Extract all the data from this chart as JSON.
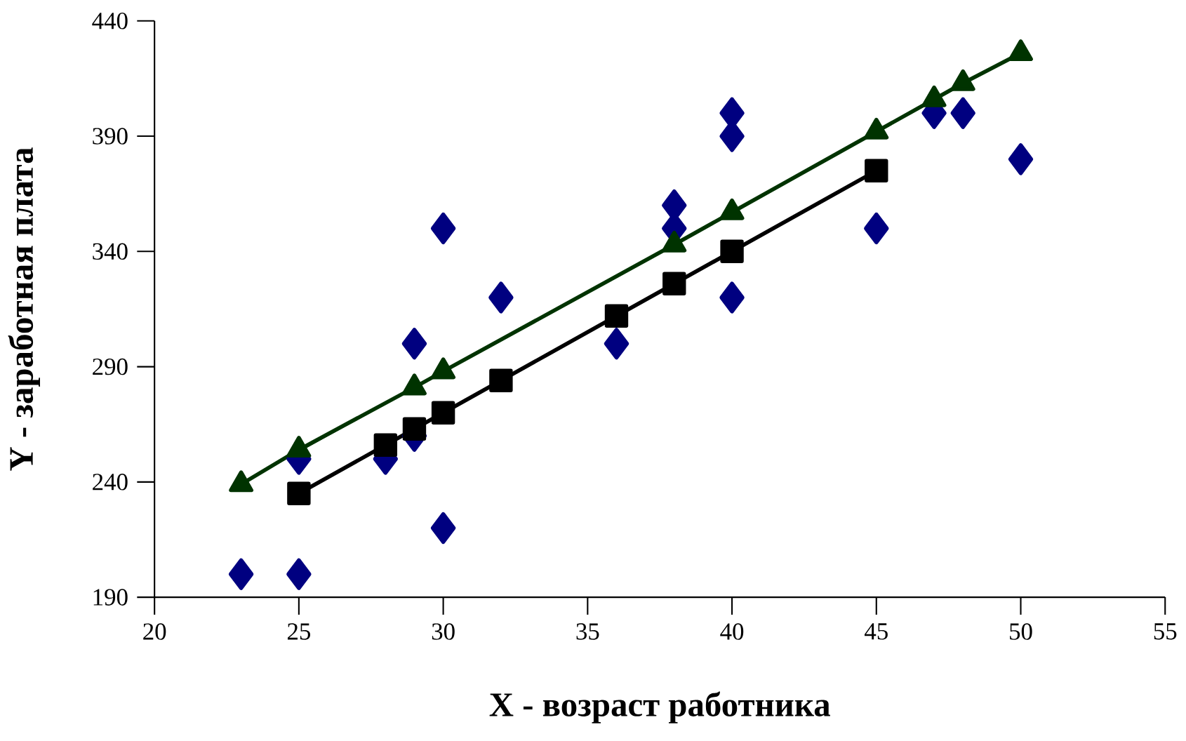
{
  "chart_data": {
    "type": "scatter",
    "xlabel": "X - возраст работника",
    "ylabel": "Y - заработная плата",
    "xlim": [
      20,
      55
    ],
    "xticks": [
      20,
      25,
      30,
      35,
      40,
      45,
      50,
      55
    ],
    "ylim": [
      190,
      440
    ],
    "yticks": [
      190,
      240,
      290,
      340,
      390,
      440
    ],
    "grid": false,
    "series": [
      {
        "marker": "diamond",
        "color": "#000080",
        "x": [
          23,
          25,
          25,
          28,
          29,
          29,
          30,
          30,
          32,
          36,
          38,
          38,
          40,
          40,
          40,
          45,
          47,
          48,
          50
        ],
        "values": [
          200,
          200,
          250,
          250,
          300,
          260,
          350,
          220,
          320,
          300,
          360,
          350,
          400,
          390,
          320,
          350,
          400,
          400,
          380
        ]
      },
      {
        "type": "line",
        "marker": "square",
        "color": "#000000",
        "x": [
          25,
          28,
          29,
          30,
          32,
          36,
          38,
          40,
          45
        ],
        "values": [
          235,
          256,
          263,
          270,
          284,
          312,
          326,
          340,
          375
        ]
      },
      {
        "type": "line",
        "marker": "triangle",
        "color": "#003300",
        "x": [
          23,
          25,
          29,
          30,
          38,
          40,
          45,
          47,
          48,
          50
        ],
        "values": [
          239,
          254,
          281,
          288,
          343,
          357,
          392,
          406,
          413,
          426
        ]
      }
    ]
  }
}
